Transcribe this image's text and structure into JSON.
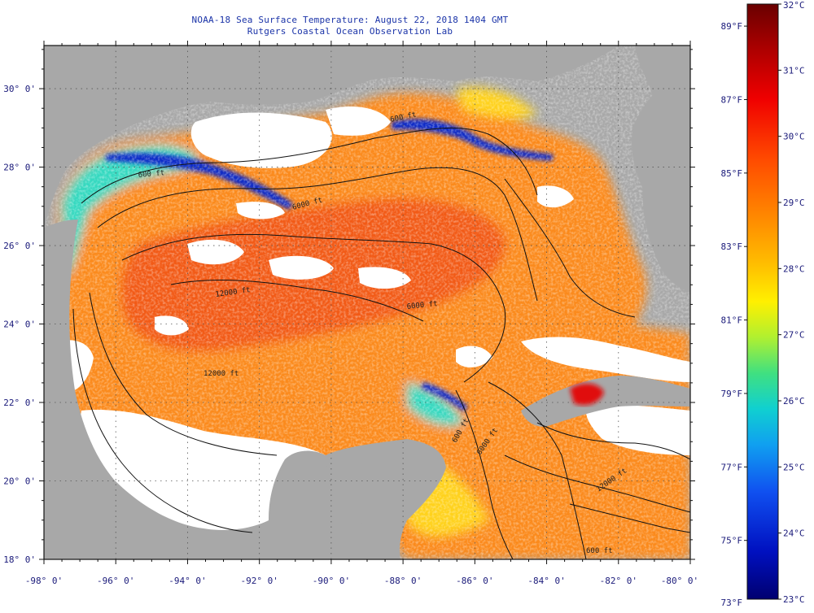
{
  "title": {
    "line1": "NOAA-18 Sea Surface Temperature:  August 22, 2018 1404 GMT",
    "line2": "Rutgers Coastal Ocean Observation Lab"
  },
  "map": {
    "lat_labels": [
      "30° 0'",
      "28° 0'",
      "26° 0'",
      "24° 0'",
      "22° 0'",
      "20° 0'",
      "18° 0'"
    ],
    "lat_values": [
      30,
      28,
      26,
      24,
      22,
      20,
      18
    ],
    "lon_labels": [
      "-98° 0'",
      "-96° 0'",
      "-94° 0'",
      "-92° 0'",
      "-90° 0'",
      "-88° 0'",
      "-86° 0'",
      "-84° 0'",
      "-82° 0'",
      "-80° 0'"
    ],
    "lon_values": [
      -98,
      -96,
      -94,
      -92,
      -90,
      -88,
      -86,
      -84,
      -82,
      -80
    ],
    "contour_labels": [
      "600 ft",
      "600 ft",
      "6000 ft",
      "12000 ft",
      "6000 ft",
      "12000 ft",
      "600 ft",
      "6000 ft",
      "12000 ft",
      "600 ft"
    ],
    "colors": {
      "land": "#a8a8a8",
      "cloud": "#ffffff",
      "sst_core": "#f25a12",
      "sst_warm": "#fb8a1a",
      "sst_mid": "#ffd21a",
      "sst_cool": "#36d9c0",
      "sst_cold": "#0a2ac8",
      "hot_spot": "#e01010"
    }
  },
  "colorbar": {
    "fahrenheit_labels": [
      "89°F",
      "87°F",
      "85°F",
      "83°F",
      "81°F",
      "79°F",
      "77°F",
      "75°F",
      "73°F"
    ],
    "fahrenheit_values": [
      89,
      87,
      85,
      83,
      81,
      79,
      77,
      75,
      73
    ],
    "celsius_labels": [
      "32°C",
      "31°C",
      "30°C",
      "29°C",
      "28°C",
      "27°C",
      "26°C",
      "25°C",
      "24°C",
      "23°C"
    ],
    "celsius_values": [
      32,
      31,
      30,
      29,
      28,
      27,
      26,
      25,
      24,
      23
    ],
    "range_c": [
      23,
      32
    ]
  }
}
